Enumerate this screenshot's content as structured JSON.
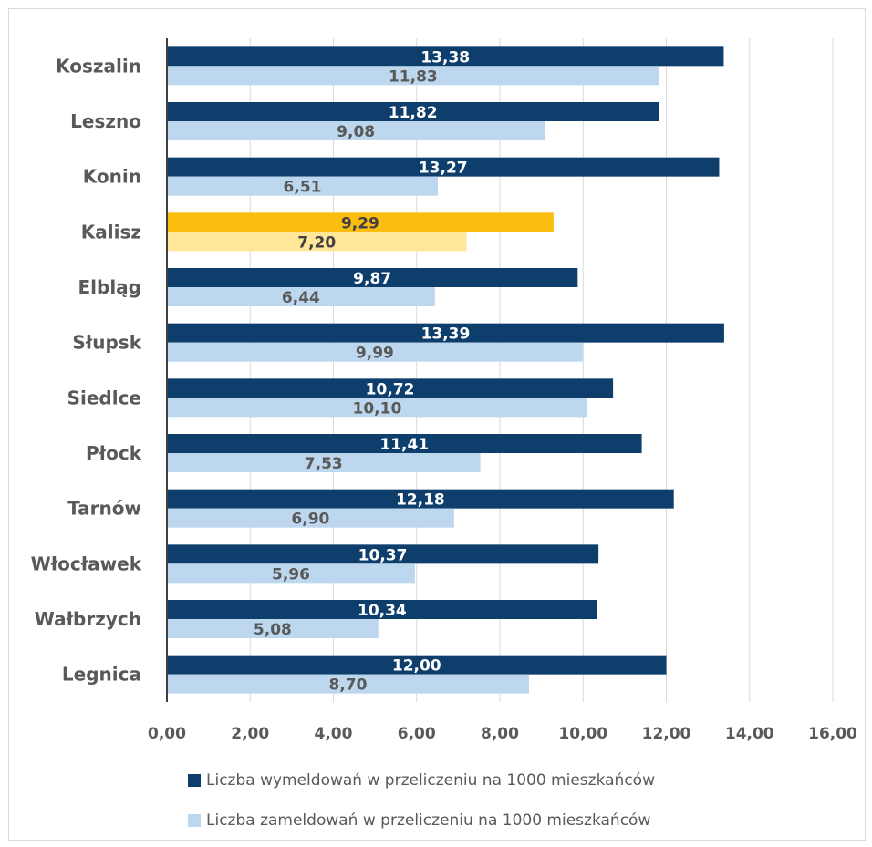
{
  "chart_data": {
    "type": "bar",
    "orientation": "horizontal",
    "categories": [
      "Koszalin",
      "Leszno",
      "Konin",
      "Kalisz",
      "Elbląg",
      "Słupsk",
      "Siedlce",
      "Płock",
      "Tarnów",
      "Włocławek",
      "Wałbrzych",
      "Legnica"
    ],
    "series": [
      {
        "name": "Liczba wymeldowań w przeliczeniu na 1000 mieszkańców",
        "color": "#0e3f6c",
        "label_color": "#ffffff",
        "values": [
          13.38,
          11.82,
          13.27,
          9.29,
          9.87,
          13.39,
          10.72,
          11.41,
          12.18,
          10.37,
          10.34,
          12.0
        ],
        "labels": [
          "13,38",
          "11,82",
          "13,27",
          "9,29",
          "9,87",
          "13,39",
          "10,72",
          "11,41",
          "12,18",
          "10,37",
          "10,34",
          "12,00"
        ]
      },
      {
        "name": "Liczba zameldowań w przeliczeniu na 1000 mieszkańców",
        "color": "#bdd7ee",
        "label_color": "#595959",
        "values": [
          11.83,
          9.08,
          6.51,
          7.2,
          6.44,
          9.99,
          10.1,
          7.53,
          6.9,
          5.96,
          5.08,
          8.7
        ],
        "labels": [
          "11,83",
          "9,08",
          "6,51",
          "7,20",
          "6,44",
          "9,99",
          "10,10",
          "7,53",
          "6,90",
          "5,96",
          "5,08",
          "8,70"
        ]
      }
    ],
    "highlight": {
      "category": "Kalisz",
      "colors": [
        "#fbbd0f",
        "#ffe699"
      ],
      "label_color": "#404040"
    },
    "xlim": [
      0,
      16
    ],
    "x_ticks": [
      0,
      2,
      4,
      6,
      8,
      10,
      12,
      14,
      16
    ],
    "x_tick_labels": [
      "0,00",
      "2,00",
      "4,00",
      "6,00",
      "8,00",
      "10,00",
      "12,00",
      "14,00",
      "16,00"
    ],
    "grid": true,
    "legend_position": "bottom"
  }
}
